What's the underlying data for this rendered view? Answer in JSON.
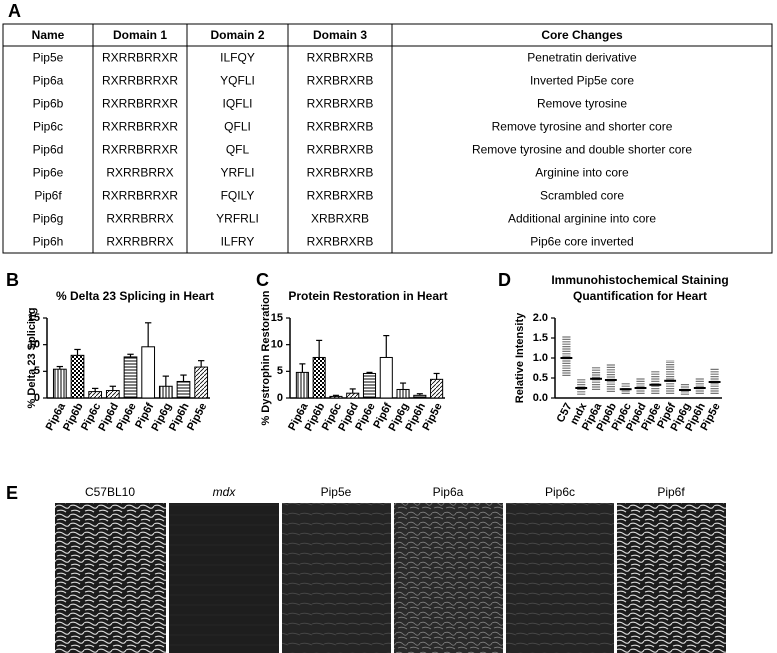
{
  "panels": [
    "A",
    "B",
    "C",
    "D",
    "E"
  ],
  "table": {
    "header": [
      "Name",
      "Domain 1",
      "Domain 2",
      "Domain 3",
      "Core Changes"
    ],
    "rows": [
      [
        "Pip5e",
        "RXRRBRRXR",
        "ILFQY",
        "RXRBRXRB",
        "Penetratin derivative"
      ],
      [
        "Pip6a",
        "RXRRBRRXR",
        "YQFLI",
        "RXRBRXRB",
        "Inverted Pip5e core"
      ],
      [
        "Pip6b",
        "RXRRBRRXR",
        "IQFLI",
        "RXRBRXRB",
        "Remove tyrosine"
      ],
      [
        "Pip6c",
        "RXRRBRRXR",
        "QFLI",
        "RXRBRXRB",
        "Remove tyrosine and shorter core"
      ],
      [
        "Pip6d",
        "RXRRBRRXR",
        "QFL",
        "RXRBRXRB",
        "Remove tyrosine and double shorter core"
      ],
      [
        "Pip6e",
        "RXRRBRRX",
        "YRFLI",
        "RXRBRXRB",
        "Arginine into core"
      ],
      [
        "Pip6f",
        "RXRRBRRXR",
        "FQILY",
        "RXRBRXRB",
        "Scrambled core"
      ],
      [
        "Pip6g",
        "RXRRBRRX",
        "YRFRLI",
        "XRBRXRB",
        "Additional arginine into core"
      ],
      [
        "Pip6h",
        "RXRRBRRX",
        "ILFRY",
        "RXRBRXRB",
        "Pip6e core inverted"
      ]
    ]
  },
  "chart_data": [
    {
      "type": "bar",
      "title": "% Delta 23 Splicing in Heart",
      "y_label": "% Delta 23  Splicing",
      "categories": [
        "Pip6a",
        "Pip6b",
        "Pip6c",
        "Pip6d",
        "Pip6e",
        "Pip6f",
        "Pip6g",
        "Pip6h",
        "Pip5e"
      ],
      "values": [
        5.4,
        8.0,
        1.2,
        1.4,
        7.7,
        9.6,
        2.2,
        3.1,
        5.8
      ],
      "errors": [
        0.5,
        1.1,
        0.6,
        0.8,
        0.5,
        4.5,
        1.9,
        1.2,
        1.2
      ],
      "patterns": [
        "vertical",
        "checker",
        "diag",
        "diag",
        "horizontal",
        "white",
        "vertical",
        "horizontal",
        "diag"
      ],
      "ylim": [
        0,
        15
      ],
      "yticks": [
        0,
        5,
        10,
        15
      ]
    },
    {
      "type": "bar",
      "title": "Protein Restoration in Heart",
      "y_label": "% Dystrophin Restoration",
      "categories": [
        "Pip6a",
        "Pip6b",
        "Pip6c",
        "Pip6d",
        "Pip6e",
        "Pip6f",
        "Pip6g",
        "Pip6h",
        "Pip5e"
      ],
      "values": [
        4.8,
        7.6,
        0.3,
        0.9,
        4.6,
        7.6,
        1.6,
        0.5,
        3.5
      ],
      "errors": [
        1.6,
        3.2,
        0.2,
        0.8,
        0.2,
        4.1,
        1.2,
        0.3,
        1.1
      ],
      "patterns": [
        "vertical",
        "checker",
        "diag",
        "diag",
        "horizontal",
        "white",
        "vertical",
        "horizontal",
        "diag"
      ],
      "ylim": [
        0,
        15
      ],
      "yticks": [
        0,
        5,
        10,
        15
      ]
    },
    {
      "type": "dot",
      "title": "Immunohistochemical Staining Quantification for Heart",
      "y_label": "Relative Intensity",
      "categories": [
        "C57",
        "mdx",
        "Pip6a",
        "Pip6b",
        "Pip6c",
        "Pip6d",
        "Pip6e",
        "Pip6f",
        "Pip6g",
        "Pip6h",
        "Pip5e"
      ],
      "values": [
        1.0,
        0.25,
        0.48,
        0.45,
        0.22,
        0.25,
        0.33,
        0.43,
        0.2,
        0.25,
        0.4
      ],
      "low": [
        0.55,
        0.08,
        0.2,
        0.15,
        0.1,
        0.1,
        0.1,
        0.1,
        0.08,
        0.1,
        0.1
      ],
      "high": [
        1.55,
        0.5,
        0.8,
        0.85,
        0.4,
        0.5,
        0.7,
        0.95,
        0.35,
        0.5,
        0.75
      ],
      "ylim": [
        0,
        2
      ],
      "yticks": [
        {
          "value": 0,
          "label": "0.0"
        },
        0.5,
        {
          "value": 1,
          "label": "1.0"
        },
        1.5,
        {
          "value": 2,
          "label": "2.0"
        }
      ]
    }
  ],
  "images": {
    "labels": [
      "C57BL10",
      "mdx",
      "Pip5e",
      "Pip6a",
      "Pip6c",
      "Pip6f"
    ]
  }
}
